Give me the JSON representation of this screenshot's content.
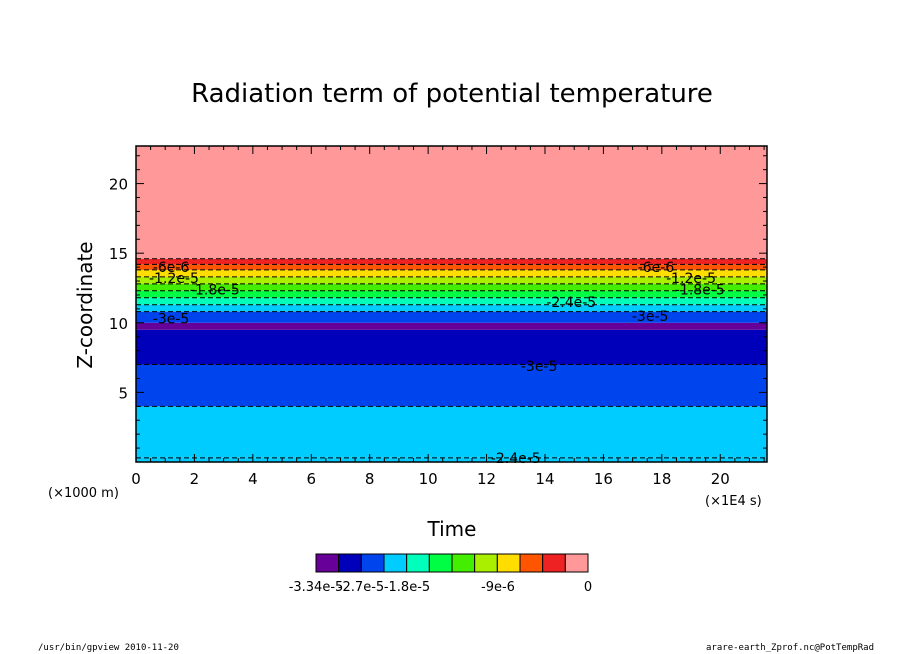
{
  "chart_data": {
    "type": "heatmap",
    "title": "Radiation term of potential temperature",
    "xlabel": "Time",
    "ylabel": "Z-coordinate",
    "x_unit": "(×1E4 s)",
    "y_unit": "(×1000 m)",
    "xlim": [
      0,
      21.6
    ],
    "ylim": [
      0,
      22.7
    ],
    "x_ticks": [
      0,
      2,
      4,
      6,
      8,
      10,
      12,
      14,
      16,
      18,
      20
    ],
    "y_ticks": [
      5,
      10,
      15,
      20
    ],
    "bands": [
      {
        "z0": 0.0,
        "z1": 0.3,
        "color": "#00ccff"
      },
      {
        "z0": 0.3,
        "z1": 4.0,
        "color": "#00ccff"
      },
      {
        "z0": 4.0,
        "z1": 7.0,
        "color": "#0044ee"
      },
      {
        "z0": 7.0,
        "z1": 9.5,
        "color": "#0000bb"
      },
      {
        "z0": 9.5,
        "z1": 10.0,
        "color": "#660099"
      },
      {
        "z0": 10.0,
        "z1": 10.8,
        "color": "#0044ee"
      },
      {
        "z0": 10.8,
        "z1": 11.3,
        "color": "#00ccff"
      },
      {
        "z0": 11.3,
        "z1": 11.8,
        "color": "#00ffbb"
      },
      {
        "z0": 11.8,
        "z1": 12.3,
        "color": "#00ff44"
      },
      {
        "z0": 12.3,
        "z1": 12.8,
        "color": "#44ee00"
      },
      {
        "z0": 12.8,
        "z1": 13.3,
        "color": "#aaee00"
      },
      {
        "z0": 13.3,
        "z1": 13.8,
        "color": "#ffdd00"
      },
      {
        "z0": 13.8,
        "z1": 14.2,
        "color": "#ff5500"
      },
      {
        "z0": 14.2,
        "z1": 14.6,
        "color": "#ee2222"
      },
      {
        "z0": 14.6,
        "z1": 22.7,
        "color": "#ff9999"
      }
    ],
    "contours": [
      0.3,
      4.0,
      7.0,
      10.8,
      11.3,
      11.8,
      12.3,
      12.8,
      13.3,
      13.8,
      14.2,
      14.6
    ],
    "contour_labels": [
      {
        "x": 1.2,
        "z": 14.0,
        "text": "-6e-6"
      },
      {
        "x": 17.8,
        "z": 14.0,
        "text": "-6e-6"
      },
      {
        "x": 1.3,
        "z": 13.2,
        "text": "-1.2e-5"
      },
      {
        "x": 19.0,
        "z": 13.2,
        "text": "-1.2e-5"
      },
      {
        "x": 2.7,
        "z": 12.4,
        "text": "-1.8e-5"
      },
      {
        "x": 19.3,
        "z": 12.4,
        "text": "-1.8e-5"
      },
      {
        "x": 14.9,
        "z": 11.5,
        "text": "-2.4e-5"
      },
      {
        "x": 1.2,
        "z": 10.3,
        "text": "-3e-5"
      },
      {
        "x": 17.6,
        "z": 10.5,
        "text": "-3e-5"
      },
      {
        "x": 13.8,
        "z": 6.9,
        "text": "-3e-5"
      },
      {
        "x": 13.0,
        "z": 0.3,
        "text": "-2.4e-5"
      }
    ],
    "colorbar": {
      "colors": [
        "#660099",
        "#0000bb",
        "#0044ee",
        "#00ccff",
        "#00ffbb",
        "#00ff44",
        "#44ee00",
        "#aaee00",
        "#ffdd00",
        "#ff5500",
        "#ee2222",
        "#ff9999"
      ],
      "tick_labels": [
        "-3.34e-5",
        "-2.7e-5",
        "-1.8e-5",
        "-9e-6",
        "0"
      ]
    }
  },
  "footer": {
    "left": "/usr/bin/gpview   2010-11-20",
    "right": "arare-earth_Zprof.nc@PotTempRad"
  }
}
